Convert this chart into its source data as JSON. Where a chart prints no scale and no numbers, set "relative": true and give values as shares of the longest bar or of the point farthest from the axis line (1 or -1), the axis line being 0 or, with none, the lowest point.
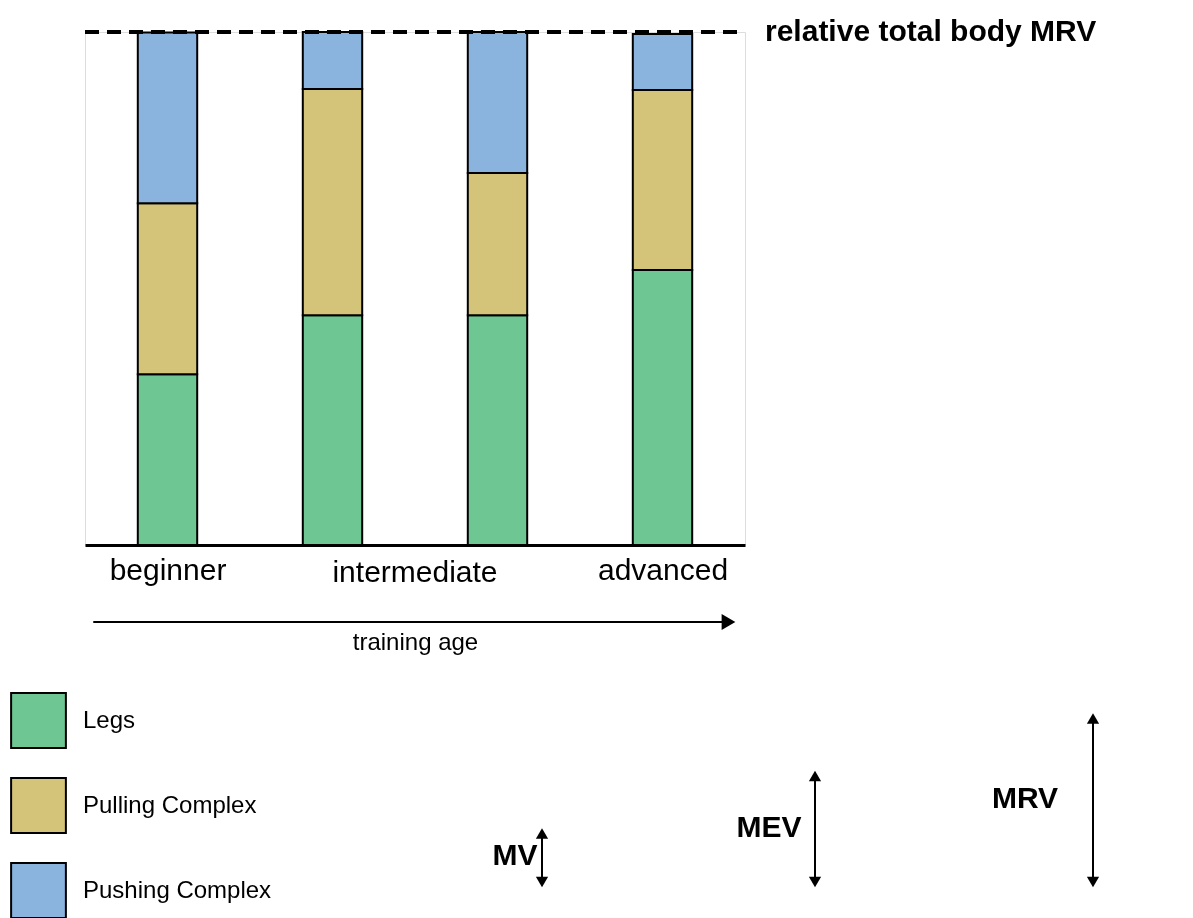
{
  "chart_data": {
    "type": "bar",
    "stacked": true,
    "relative": true,
    "xlabel": "training age",
    "categories": [
      "beginner",
      null,
      null,
      "advanced"
    ],
    "series": [
      {
        "name": "Legs",
        "color": "#6ec692",
        "values": [
          0.333,
          0.448,
          0.448,
          0.536
        ]
      },
      {
        "name": "Pulling Complex",
        "color": "#d4c47a",
        "values": [
          0.333,
          0.441,
          0.277,
          0.351
        ]
      },
      {
        "name": "Pushing Complex",
        "color": "#8ab4de",
        "values": [
          0.333,
          0.111,
          0.275,
          0.109
        ]
      }
    ],
    "ref_lines": [
      {
        "axis": "y",
        "value": 1,
        "label": "relative total body MRV",
        "color": "#000000",
        "line_style": "dashed"
      }
    ],
    "legend": "bottom left",
    "annotations": [
      "intermediate",
      "MV",
      "MEV",
      "MRV"
    ]
  }
}
